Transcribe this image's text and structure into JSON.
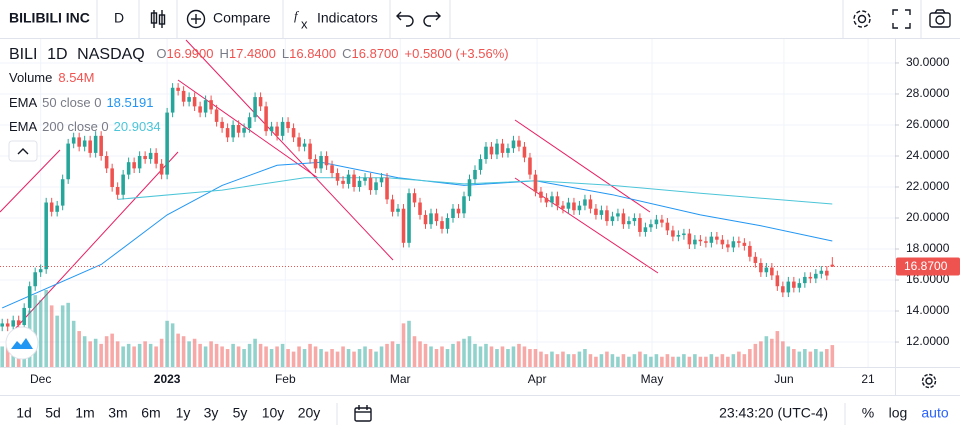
{
  "toolbar": {
    "symbol_name": "BILIBILI INC",
    "interval": "D",
    "compare": "Compare",
    "indicators": "Indicators"
  },
  "chart_data": {
    "type": "candlestick",
    "symbol": "BILI",
    "interval": "1D",
    "exchange": "NASDAQ",
    "ohlc_labels": [
      "O",
      "H",
      "L",
      "C"
    ],
    "ohlc_values": [
      "16.9900",
      "17.4800",
      "16.8400",
      "16.8700"
    ],
    "change": "+0.5800 (+3.56%)",
    "last_price_label": "16.8700",
    "up_color": "#26a69a",
    "down_color": "#ef5350",
    "volume_legend": {
      "name": "Volume",
      "last": "8.54M"
    },
    "candles": {
      "open": [
        13.0,
        13.2,
        13.0,
        13.4,
        13.1,
        14.2,
        15.6,
        16.5,
        16.7,
        21.0,
        20.4,
        20.8,
        22.5,
        24.8,
        25.2,
        24.6,
        25.0,
        24.2,
        25.3,
        24.0,
        23.2,
        22.0,
        21.5,
        22.8,
        23.6,
        23.2,
        24.0,
        23.8,
        24.2,
        23.5,
        22.8,
        26.8,
        28.4,
        28.2,
        27.5,
        27.8,
        27.2,
        26.8,
        27.6,
        27.0,
        26.2,
        25.8,
        25.2,
        26.0,
        25.5,
        25.8,
        26.5,
        27.8,
        27.2,
        25.6,
        25.9,
        25.3,
        26.2,
        25.8,
        25.2,
        24.6,
        24.8,
        23.8,
        23.2,
        24.0,
        23.4,
        22.9,
        22.4,
        22.2,
        22.8,
        22.0,
        22.4,
        22.6,
        21.8,
        22.3,
        22.6,
        21.2,
        20.4,
        20.6,
        18.4,
        21.6,
        21.0,
        20.2,
        19.6,
        20.3,
        19.8,
        19.3,
        20.0,
        20.6,
        20.3,
        21.4,
        22.5,
        23.1,
        23.8,
        24.6,
        24.1,
        24.8,
        24.2,
        24.5,
        25.0,
        24.6,
        23.9,
        22.8,
        21.7,
        21.3,
        21.0,
        21.4,
        20.8,
        20.6,
        21.0,
        20.5,
        20.8,
        21.2,
        20.6,
        20.2,
        20.5,
        19.8,
        20.1,
        20.3,
        19.6,
        19.8,
        20.0,
        19.1,
        19.4,
        19.6,
        19.9,
        19.7,
        19.2,
        18.8,
        18.9,
        19.0,
        18.3,
        18.6,
        18.5,
        18.4,
        18.8,
        18.6,
        18.3,
        18.1,
        18.5,
        18.4,
        18.2,
        17.5,
        17.1,
        16.5,
        16.8,
        16.3,
        15.6,
        15.2,
        15.9,
        15.5,
        15.8,
        16.2,
        16.1,
        16.4,
        16.6,
        16.99
      ],
      "high": [
        13.5,
        13.5,
        13.7,
        13.7,
        14.5,
        15.9,
        16.8,
        17.0,
        21.3,
        21.3,
        21.1,
        22.8,
        25.1,
        25.5,
        25.5,
        25.3,
        25.3,
        25.6,
        25.6,
        24.3,
        23.5,
        22.3,
        23.1,
        23.9,
        23.9,
        24.3,
        24.3,
        24.5,
        24.5,
        23.8,
        27.1,
        28.7,
        28.7,
        28.5,
        28.1,
        28.1,
        27.5,
        27.9,
        27.9,
        27.3,
        26.5,
        26.1,
        26.3,
        26.3,
        26.1,
        26.8,
        28.1,
        28.1,
        27.5,
        26.2,
        26.2,
        26.5,
        26.5,
        26.1,
        25.5,
        25.1,
        25.1,
        24.1,
        24.3,
        24.3,
        23.7,
        23.2,
        22.7,
        23.1,
        23.1,
        22.7,
        22.9,
        22.9,
        22.6,
        22.9,
        22.9,
        21.5,
        20.9,
        20.9,
        21.9,
        21.9,
        21.3,
        20.5,
        20.6,
        20.6,
        20.1,
        20.3,
        20.9,
        20.9,
        21.7,
        22.8,
        23.4,
        24.1,
        24.9,
        24.9,
        25.1,
        25.1,
        24.8,
        25.3,
        25.3,
        24.9,
        24.2,
        23.1,
        22.0,
        21.6,
        21.7,
        21.7,
        21.1,
        21.3,
        21.3,
        21.1,
        21.5,
        21.5,
        20.9,
        20.8,
        20.8,
        20.4,
        20.6,
        20.6,
        20.1,
        20.3,
        20.3,
        19.7,
        19.9,
        20.2,
        20.2,
        20.0,
        19.5,
        19.2,
        19.3,
        19.3,
        18.9,
        18.9,
        18.8,
        19.1,
        19.1,
        18.9,
        18.6,
        18.8,
        18.8,
        18.7,
        18.5,
        17.8,
        17.4,
        17.1,
        17.1,
        16.6,
        15.9,
        16.2,
        16.2,
        16.1,
        16.5,
        16.5,
        16.7,
        16.9,
        16.9,
        17.48
      ],
      "low": [
        12.7,
        12.7,
        12.7,
        12.8,
        12.8,
        13.9,
        15.3,
        16.2,
        16.4,
        20.1,
        20.1,
        20.5,
        22.2,
        24.5,
        24.3,
        24.3,
        23.9,
        23.9,
        23.7,
        22.9,
        21.7,
        21.2,
        21.2,
        22.5,
        22.9,
        22.9,
        23.5,
        23.5,
        23.2,
        22.5,
        22.5,
        26.5,
        27.9,
        27.2,
        27.2,
        26.9,
        26.5,
        26.5,
        26.7,
        25.9,
        25.5,
        24.9,
        24.9,
        25.2,
        25.2,
        25.5,
        26.2,
        26.9,
        25.3,
        25.3,
        25.0,
        25.0,
        25.5,
        24.9,
        24.3,
        24.3,
        23.5,
        22.9,
        22.9,
        23.1,
        22.6,
        22.1,
        21.9,
        21.9,
        21.7,
        21.7,
        22.1,
        21.5,
        21.5,
        22.0,
        20.9,
        20.1,
        20.1,
        18.1,
        18.1,
        20.7,
        19.9,
        19.3,
        19.3,
        19.5,
        19.0,
        19.0,
        19.7,
        20.0,
        20.0,
        21.1,
        22.2,
        22.8,
        23.5,
        23.8,
        23.8,
        23.9,
        23.9,
        24.2,
        24.3,
        23.6,
        22.5,
        21.4,
        21.0,
        20.7,
        20.7,
        20.5,
        20.3,
        20.3,
        20.2,
        20.2,
        20.5,
        20.3,
        19.9,
        19.9,
        19.5,
        19.5,
        19.8,
        19.3,
        19.3,
        19.5,
        18.8,
        18.8,
        19.1,
        19.3,
        19.4,
        18.9,
        18.5,
        18.5,
        18.6,
        18.0,
        18.0,
        18.2,
        18.1,
        18.1,
        18.3,
        18.0,
        17.8,
        17.8,
        18.1,
        17.9,
        17.2,
        16.8,
        16.2,
        16.2,
        16.0,
        15.3,
        14.9,
        14.9,
        15.2,
        15.2,
        15.5,
        15.8,
        15.8,
        16.1,
        15.99,
        16.84
      ],
      "close": [
        13.2,
        13.0,
        13.4,
        13.1,
        14.2,
        15.6,
        16.5,
        16.7,
        21.0,
        20.4,
        20.8,
        22.5,
        24.8,
        25.2,
        24.6,
        25.0,
        24.2,
        25.3,
        24.0,
        23.2,
        22.0,
        21.5,
        22.8,
        23.6,
        23.2,
        24.0,
        23.8,
        24.2,
        23.5,
        22.8,
        26.8,
        28.4,
        28.2,
        27.5,
        27.8,
        27.2,
        26.8,
        27.6,
        27.0,
        26.2,
        25.8,
        25.2,
        26.0,
        25.5,
        25.8,
        26.5,
        27.8,
        27.2,
        25.6,
        25.9,
        25.3,
        26.2,
        25.8,
        25.2,
        24.6,
        24.8,
        23.8,
        23.2,
        24.0,
        23.4,
        22.9,
        22.4,
        22.2,
        22.8,
        22.0,
        22.4,
        22.6,
        21.8,
        22.3,
        22.6,
        21.2,
        20.4,
        20.6,
        18.4,
        21.6,
        21.0,
        20.2,
        19.6,
        20.3,
        19.8,
        19.3,
        20.0,
        20.6,
        20.3,
        21.4,
        22.5,
        23.1,
        23.8,
        24.6,
        24.1,
        24.8,
        24.2,
        24.5,
        25.0,
        24.6,
        23.9,
        22.8,
        21.7,
        21.3,
        21.0,
        21.4,
        20.8,
        20.6,
        21.0,
        20.5,
        20.8,
        21.2,
        20.6,
        20.2,
        20.5,
        19.8,
        20.1,
        20.3,
        19.6,
        19.8,
        20.0,
        19.1,
        19.4,
        19.6,
        19.9,
        19.7,
        19.2,
        18.8,
        18.9,
        19.0,
        18.3,
        18.6,
        18.5,
        18.4,
        18.8,
        18.6,
        18.3,
        18.1,
        18.5,
        18.4,
        18.2,
        17.5,
        17.1,
        16.5,
        16.8,
        16.3,
        15.6,
        15.2,
        15.9,
        15.5,
        15.8,
        16.2,
        16.1,
        16.4,
        16.6,
        16.29,
        16.87
      ]
    },
    "volume": [
      8,
      10,
      12,
      9,
      14,
      22,
      28,
      26,
      30,
      24,
      20,
      24,
      25,
      18,
      14,
      12,
      10,
      11,
      9,
      12,
      13,
      10,
      8,
      9,
      8,
      9,
      10,
      9,
      8,
      11,
      18,
      17,
      13,
      12,
      10,
      11,
      9,
      8,
      10,
      9,
      8,
      7,
      9,
      8,
      7,
      9,
      11,
      9,
      8,
      7,
      8,
      9,
      7,
      6,
      8,
      7,
      9,
      8,
      7,
      6,
      7,
      6,
      8,
      7,
      6,
      7,
      8,
      7,
      6,
      8,
      9,
      10,
      9,
      17,
      18,
      12,
      10,
      9,
      8,
      7,
      8,
      7,
      9,
      10,
      11,
      12,
      9,
      8,
      9,
      8,
      7,
      8,
      7,
      8,
      9,
      8,
      7,
      7,
      6,
      5,
      6,
      5,
      6,
      5,
      5,
      6,
      7,
      5,
      4,
      5,
      6,
      5,
      4,
      5,
      4,
      5,
      6,
      5,
      4,
      5,
      4,
      5,
      4,
      4,
      5,
      4,
      5,
      4,
      4,
      5,
      4,
      5,
      4,
      5,
      6,
      5,
      7,
      9,
      10,
      12,
      11,
      14,
      10,
      8,
      7,
      6,
      7,
      6,
      7,
      6,
      7,
      8.54
    ],
    "ema": [
      {
        "name": "EMA",
        "params": "50 close 0",
        "last": "18.5191",
        "color": "#2196f3",
        "x": [
          0,
          18,
          30,
          40,
          50,
          58,
          72,
          84,
          97,
          111,
          127,
          138,
          151
        ],
        "values": [
          14.2,
          17.0,
          20.2,
          22.1,
          23.4,
          23.6,
          22.6,
          22.1,
          22.4,
          21.5,
          20.2,
          19.5,
          18.5191
        ]
      },
      {
        "name": "EMA",
        "params": "200 close 0",
        "last": "20.9034",
        "color": "#4cc5d8",
        "x": [
          21,
          40,
          55,
          70,
          84,
          97,
          111,
          127,
          151
        ],
        "values": [
          21.2,
          21.8,
          22.6,
          22.6,
          22.2,
          22.4,
          22.1,
          21.6,
          20.9034
        ]
      }
    ],
    "xlim": [
      -0.4,
      162.4
    ],
    "xticks": [
      {
        "value": 7,
        "label": "Dec"
      },
      {
        "value": 30,
        "label": "2023"
      },
      {
        "value": 51.5,
        "label": "Feb"
      },
      {
        "value": 72.4,
        "label": "Mar"
      },
      {
        "value": 97.3,
        "label": "Apr"
      },
      {
        "value": 118.2,
        "label": "May"
      },
      {
        "value": 142.2,
        "label": "Jun"
      },
      {
        "value": 157.5,
        "label": "21"
      }
    ],
    "ylim": [
      10.39,
      31.61
    ],
    "yticks": [
      {
        "value": 12,
        "label": "12.0000"
      },
      {
        "value": 14,
        "label": "14.0000"
      },
      {
        "value": 16,
        "label": "16.0000"
      },
      {
        "value": 18,
        "label": "18.0000"
      },
      {
        "value": 20,
        "label": "20.0000"
      },
      {
        "value": 22,
        "label": "22.0000"
      },
      {
        "value": 24,
        "label": "24.0000"
      },
      {
        "value": 26,
        "label": "26.0000"
      },
      {
        "value": 28,
        "label": "28.0000"
      },
      {
        "value": 30,
        "label": "30.0000"
      }
    ],
    "grid": true
  },
  "bottom_bar": {
    "ranges": [
      "1d",
      "5d",
      "1m",
      "3m",
      "6m",
      "1y",
      "3y",
      "5y",
      "10y",
      "20y"
    ],
    "time": "23:43:20 (UTC-4)",
    "percent": "%",
    "log": "log",
    "auto": "auto"
  }
}
